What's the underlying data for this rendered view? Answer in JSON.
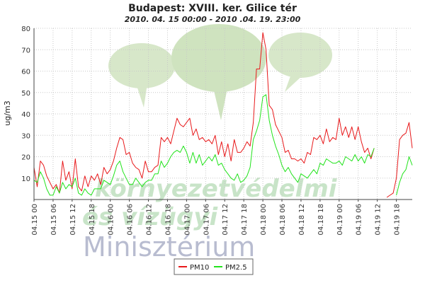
{
  "chart_data": {
    "type": "line",
    "title": "Budapest: XVIII. ker. Gilice tér",
    "subtitle": "2010. 04. 15 00:00 - 2010 .04. 19. 23:00",
    "ylabel": "ug/m3",
    "xlabel": "",
    "ylim": [
      0,
      80
    ],
    "yticks": [
      10,
      20,
      30,
      40,
      50,
      60,
      70,
      80
    ],
    "grid": true,
    "legend_position": "bottom-center",
    "x_start_hour": 0,
    "x_end_hour": 119,
    "x_ticks": [
      {
        "hour": 0,
        "label": "04.15 00"
      },
      {
        "hour": 6,
        "label": "04.15 06"
      },
      {
        "hour": 12,
        "label": "04.15 12"
      },
      {
        "hour": 18,
        "label": "04.15 18"
      },
      {
        "hour": 24,
        "label": "04.16 00"
      },
      {
        "hour": 30,
        "label": "04.16 06"
      },
      {
        "hour": 36,
        "label": "04.16 12"
      },
      {
        "hour": 42,
        "label": "04.16 18"
      },
      {
        "hour": 48,
        "label": "04.17 00"
      },
      {
        "hour": 54,
        "label": "04.17 06"
      },
      {
        "hour": 60,
        "label": "04.17 12"
      },
      {
        "hour": 66,
        "label": "04.17 18"
      },
      {
        "hour": 72,
        "label": "04.18 00"
      },
      {
        "hour": 78,
        "label": "04.18 06"
      },
      {
        "hour": 84,
        "label": "04.18 12"
      },
      {
        "hour": 90,
        "label": "04.18 18"
      },
      {
        "hour": 96,
        "label": "04.19 00"
      },
      {
        "hour": 102,
        "label": "04.19 06"
      },
      {
        "hour": 108,
        "label": "04.19 12"
      },
      {
        "hour": 114,
        "label": "04.19 18"
      }
    ],
    "series": [
      {
        "name": "PM10",
        "color": "#e8191b",
        "points": [
          [
            0,
            15
          ],
          [
            1,
            6
          ],
          [
            2,
            18
          ],
          [
            3,
            16
          ],
          [
            4,
            11
          ],
          [
            5,
            8
          ],
          [
            6,
            5
          ],
          [
            7,
            7
          ],
          [
            8,
            3
          ],
          [
            9,
            18
          ],
          [
            10,
            9
          ],
          [
            11,
            13
          ],
          [
            12,
            5
          ],
          [
            13,
            19
          ],
          [
            14,
            6
          ],
          [
            15,
            4
          ],
          [
            16,
            11
          ],
          [
            17,
            6
          ],
          [
            18,
            11
          ],
          [
            19,
            9
          ],
          [
            20,
            12
          ],
          [
            21,
            7
          ],
          [
            22,
            15
          ],
          [
            23,
            12
          ],
          [
            24,
            14
          ],
          [
            25,
            18
          ],
          [
            26,
            24
          ],
          [
            27,
            29
          ],
          [
            28,
            28
          ],
          [
            29,
            21
          ],
          [
            30,
            22
          ],
          [
            31,
            17
          ],
          [
            32,
            15
          ],
          [
            33,
            14
          ],
          [
            34,
            10
          ],
          [
            35,
            18
          ],
          [
            36,
            13
          ],
          [
            37,
            13
          ],
          [
            38,
            15
          ],
          [
            39,
            16
          ],
          [
            40,
            29
          ],
          [
            41,
            27
          ],
          [
            42,
            29
          ],
          [
            43,
            26
          ],
          [
            44,
            32
          ],
          [
            45,
            38
          ],
          [
            46,
            35
          ],
          [
            47,
            34
          ],
          [
            48,
            36
          ],
          [
            49,
            38
          ],
          [
            50,
            30
          ],
          [
            51,
            33
          ],
          [
            52,
            28
          ],
          [
            53,
            29
          ],
          [
            54,
            27
          ],
          [
            55,
            28
          ],
          [
            56,
            26
          ],
          [
            57,
            30
          ],
          [
            58,
            21
          ],
          [
            59,
            27
          ],
          [
            60,
            20
          ],
          [
            61,
            26
          ],
          [
            62,
            18
          ],
          [
            63,
            28
          ],
          [
            64,
            22
          ],
          [
            65,
            22
          ],
          [
            66,
            24
          ],
          [
            67,
            27
          ],
          [
            68,
            25
          ],
          [
            69,
            36
          ],
          [
            70,
            61
          ],
          [
            71,
            61
          ],
          [
            72,
            78
          ],
          [
            73,
            70
          ],
          [
            74,
            44
          ],
          [
            75,
            42
          ],
          [
            76,
            35
          ],
          [
            77,
            32
          ],
          [
            78,
            29
          ],
          [
            79,
            22
          ],
          [
            80,
            23
          ],
          [
            81,
            19
          ],
          [
            82,
            19
          ],
          [
            83,
            18
          ],
          [
            84,
            19
          ],
          [
            85,
            17
          ],
          [
            86,
            22
          ],
          [
            87,
            21
          ],
          [
            88,
            29
          ],
          [
            89,
            28
          ],
          [
            90,
            30
          ],
          [
            91,
            26
          ],
          [
            92,
            33
          ],
          [
            93,
            27
          ],
          [
            94,
            29
          ],
          [
            95,
            28
          ],
          [
            96,
            38
          ],
          [
            97,
            30
          ],
          [
            98,
            34
          ],
          [
            99,
            29
          ],
          [
            100,
            34
          ],
          [
            101,
            28
          ],
          [
            102,
            34
          ],
          [
            103,
            27
          ],
          [
            104,
            22
          ],
          [
            105,
            24
          ],
          [
            106,
            19
          ],
          [
            107,
            24
          ],
          [
            108,
            null
          ],
          [
            109,
            null
          ],
          [
            110,
            null
          ],
          [
            111,
            1
          ],
          [
            112,
            2
          ],
          [
            113,
            3
          ],
          [
            114,
            10
          ],
          [
            115,
            28
          ],
          [
            116,
            30
          ],
          [
            117,
            31
          ],
          [
            118,
            36
          ],
          [
            119,
            24
          ]
        ]
      },
      {
        "name": "PM2.5",
        "color": "#22e31c",
        "points": [
          [
            0,
            9
          ],
          [
            1,
            8
          ],
          [
            2,
            13
          ],
          [
            3,
            10
          ],
          [
            4,
            5
          ],
          [
            5,
            2
          ],
          [
            6,
            2
          ],
          [
            7,
            6
          ],
          [
            8,
            3
          ],
          [
            9,
            8
          ],
          [
            10,
            5
          ],
          [
            11,
            7
          ],
          [
            12,
            6
          ],
          [
            13,
            10
          ],
          [
            14,
            3
          ],
          [
            15,
            2
          ],
          [
            16,
            5
          ],
          [
            17,
            3
          ],
          [
            18,
            2
          ],
          [
            19,
            5
          ],
          [
            20,
            5
          ],
          [
            21,
            5
          ],
          [
            22,
            9
          ],
          [
            23,
            8
          ],
          [
            24,
            7
          ],
          [
            25,
            11
          ],
          [
            26,
            16
          ],
          [
            27,
            18
          ],
          [
            28,
            13
          ],
          [
            29,
            10
          ],
          [
            30,
            7
          ],
          [
            31,
            7
          ],
          [
            32,
            10
          ],
          [
            33,
            8
          ],
          [
            34,
            6
          ],
          [
            35,
            8
          ],
          [
            36,
            9
          ],
          [
            37,
            9
          ],
          [
            38,
            12
          ],
          [
            39,
            12
          ],
          [
            40,
            18
          ],
          [
            41,
            15
          ],
          [
            42,
            17
          ],
          [
            43,
            20
          ],
          [
            44,
            22
          ],
          [
            45,
            23
          ],
          [
            46,
            22
          ],
          [
            47,
            25
          ],
          [
            48,
            22
          ],
          [
            49,
            17
          ],
          [
            50,
            22
          ],
          [
            51,
            17
          ],
          [
            52,
            21
          ],
          [
            53,
            16
          ],
          [
            54,
            18
          ],
          [
            55,
            20
          ],
          [
            56,
            18
          ],
          [
            57,
            21
          ],
          [
            58,
            16
          ],
          [
            59,
            17
          ],
          [
            60,
            14
          ],
          [
            61,
            12
          ],
          [
            62,
            10
          ],
          [
            63,
            9
          ],
          [
            64,
            12
          ],
          [
            65,
            8
          ],
          [
            66,
            9
          ],
          [
            67,
            11
          ],
          [
            68,
            15
          ],
          [
            69,
            28
          ],
          [
            70,
            32
          ],
          [
            71,
            37
          ],
          [
            72,
            48
          ],
          [
            73,
            49
          ],
          [
            74,
            37
          ],
          [
            75,
            30
          ],
          [
            76,
            25
          ],
          [
            77,
            21
          ],
          [
            78,
            16
          ],
          [
            79,
            13
          ],
          [
            80,
            15
          ],
          [
            81,
            12
          ],
          [
            82,
            10
          ],
          [
            83,
            8
          ],
          [
            84,
            12
          ],
          [
            85,
            11
          ],
          [
            86,
            10
          ],
          [
            87,
            12
          ],
          [
            88,
            14
          ],
          [
            89,
            12
          ],
          [
            90,
            17
          ],
          [
            91,
            16
          ],
          [
            92,
            19
          ],
          [
            93,
            18
          ],
          [
            94,
            17
          ],
          [
            95,
            17
          ],
          [
            96,
            18
          ],
          [
            97,
            16
          ],
          [
            98,
            20
          ],
          [
            99,
            19
          ],
          [
            100,
            18
          ],
          [
            101,
            21
          ],
          [
            102,
            18
          ],
          [
            103,
            20
          ],
          [
            104,
            17
          ],
          [
            105,
            21
          ],
          [
            106,
            20
          ],
          [
            107,
            24
          ],
          [
            108,
            null
          ],
          [
            109,
            null
          ],
          [
            110,
            null
          ],
          [
            111,
            null
          ],
          [
            112,
            null
          ],
          [
            113,
            null
          ],
          [
            114,
            2
          ],
          [
            115,
            8
          ],
          [
            116,
            12
          ],
          [
            117,
            14
          ],
          [
            118,
            20
          ],
          [
            119,
            16
          ]
        ]
      }
    ]
  },
  "watermark": {
    "line1": "környezetvédelmi",
    "line2": "és vízügyi",
    "line3": "Minisztérium",
    "bubble_color": "#d7e7c9"
  }
}
